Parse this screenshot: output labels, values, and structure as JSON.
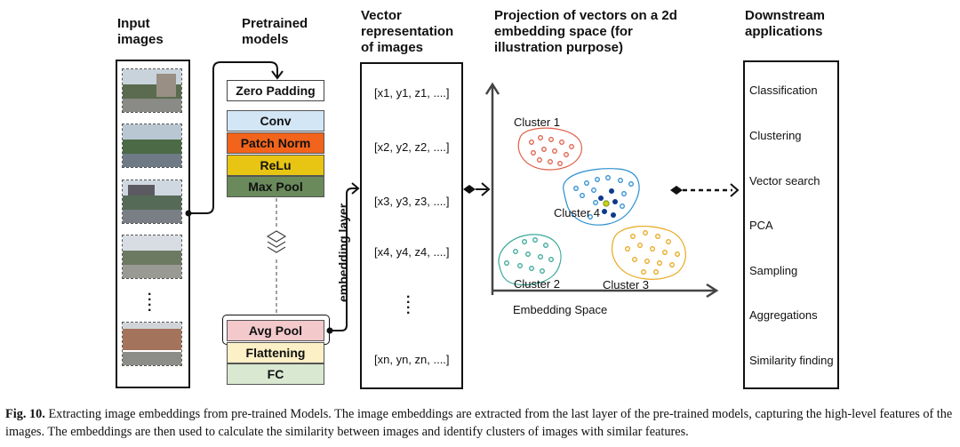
{
  "headers": {
    "input_images": "Input\nimages",
    "pretrained_models": "Pretrained\nmodels",
    "vector_representation": "Vector\nrepresentation\nof images",
    "projection": "Projection of vectors on a 2d\nembedding space (for\nillustration purpose)",
    "downstream": "Downstream\napplications"
  },
  "layers": {
    "zero_padding": "Zero Padding",
    "conv": "Conv",
    "patch_norm": "Patch Norm",
    "relu": "ReLu",
    "max_pool": "Max Pool",
    "avg_pool": "Avg Pool",
    "flattening": "Flattening",
    "fc": "FC"
  },
  "layer_colors": {
    "conv": "#d3e6f5",
    "patch_norm": "#f2641c",
    "relu": "#e8c512",
    "max_pool": "#6a8a5c",
    "avg_pool": "#f3c9cc",
    "flattening": "#fbf0c6",
    "fc": "#d9e8d1"
  },
  "embedding_layer_label": "embedding layer",
  "vectors": [
    "[x1, y1, z1, ....]",
    "[x2, y2, z2, ....]",
    "[x3, y3, z3, ....]",
    "[x4, y4, z4, ....]",
    "[xn, yn, zn, ....]"
  ],
  "clusters": {
    "c1": "Cluster 1",
    "c2": "Cluster 2",
    "c3": "Cluster 3",
    "c4": "Cluster 4",
    "colors": {
      "c1": "#e0604a",
      "c2": "#3aa89a",
      "c3": "#e8a81c",
      "c4": "#2a8fd0",
      "c4_dark": "#0d3a8a",
      "c4_center": "#c6d21a"
    }
  },
  "axis_label": "Embedding Space",
  "applications": [
    "Classification",
    "Clustering",
    "Vector search",
    "PCA",
    "Sampling",
    "Aggregations",
    "Similarity finding"
  ],
  "caption": {
    "label": "Fig. 10.",
    "text": "Extracting image embeddings from pre-trained Models. The image embeddings are extracted from the last layer of the pre-trained models, capturing the high-level features of the images. The embeddings are then used to calculate the similarity between images and identify clusters of images with similar features."
  }
}
